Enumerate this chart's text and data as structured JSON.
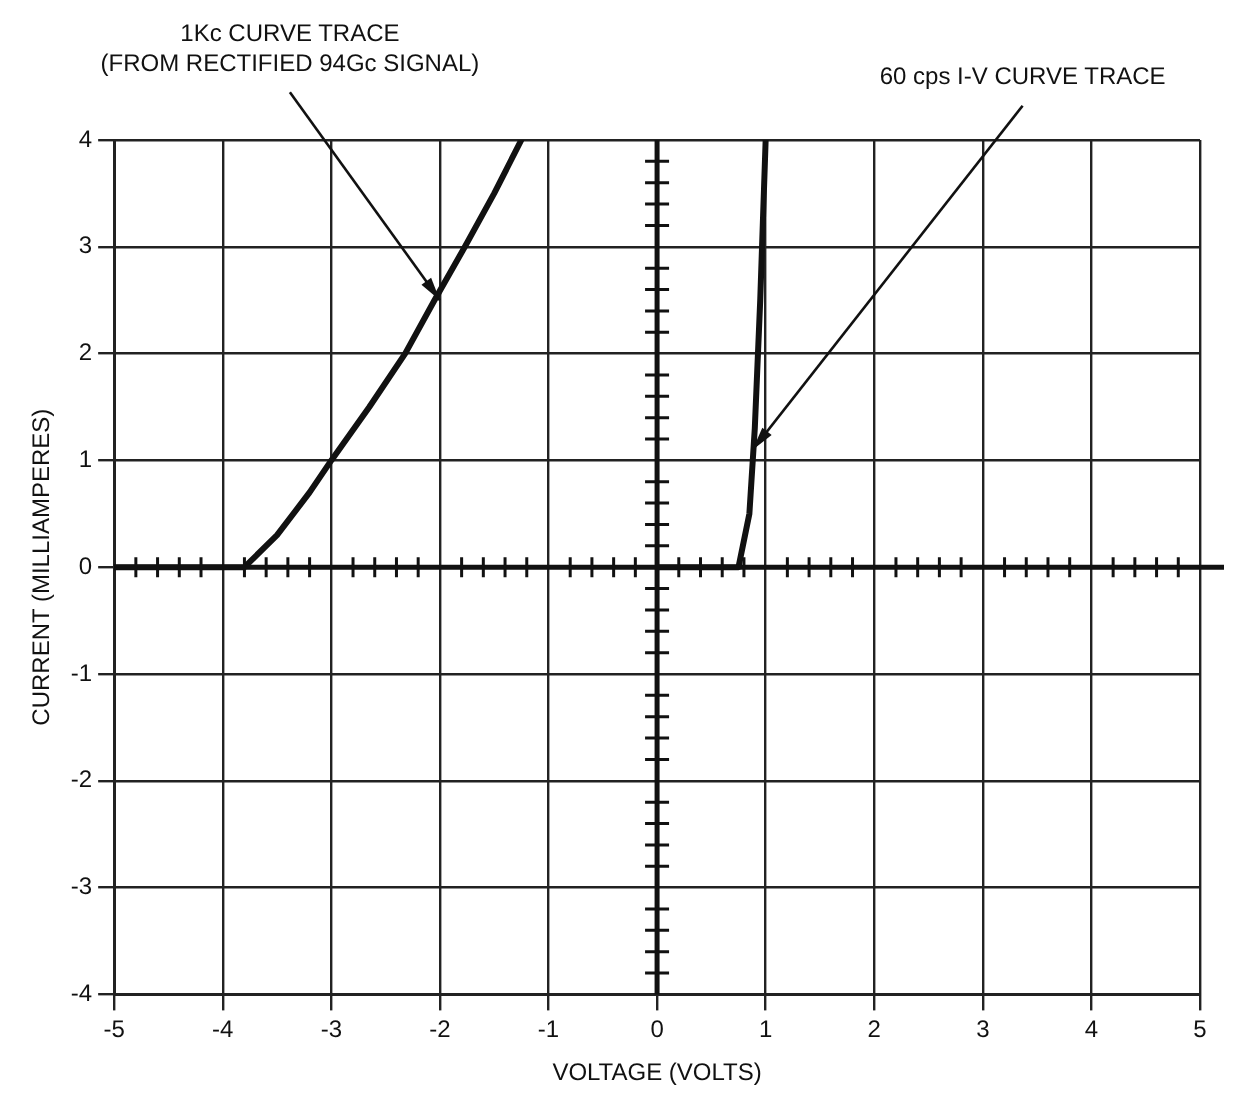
{
  "chart_data": {
    "type": "line",
    "xlabel": "VOLTAGE (VOLTS)",
    "ylabel": "CURRENT (MILLIAMPERES)",
    "xlim": [
      -5,
      5
    ],
    "xticks": [
      -5,
      -4,
      -3,
      -2,
      -1,
      0,
      1,
      2,
      3,
      4,
      5
    ],
    "ylim": [
      -4,
      4
    ],
    "yticks": [
      -4,
      -3,
      -2,
      -1,
      0,
      1,
      2,
      3,
      4
    ],
    "grid": true,
    "legend": false,
    "marker": "none",
    "line_style": "solid",
    "series": [
      {
        "color": "#111111",
        "x": [
          -5,
          -3.8,
          -3.5,
          -3.2,
          -3,
          -2.65,
          -2.32,
          -2.05,
          -1.77,
          -1.5,
          -1.25
        ],
        "values": [
          0,
          0,
          0.3,
          0.7,
          1,
          1.5,
          2,
          2.5,
          3,
          3.5,
          4
        ]
      },
      {
        "color": "#111111",
        "x": [
          0,
          0.75,
          0.85,
          0.9,
          0.95,
          1
        ],
        "values": [
          0,
          0,
          0.5,
          1.3,
          2.5,
          4
        ]
      }
    ],
    "annotations": [
      {
        "text": "1Kc CURVE TRACE\n(FROM RECTIFIED 94Gc SIGNAL)",
        "x": -2,
        "y": 2.5
      },
      {
        "text": "60 cps I-V CURVE TRACE",
        "x": 0.88,
        "y": 1.1
      }
    ]
  }
}
